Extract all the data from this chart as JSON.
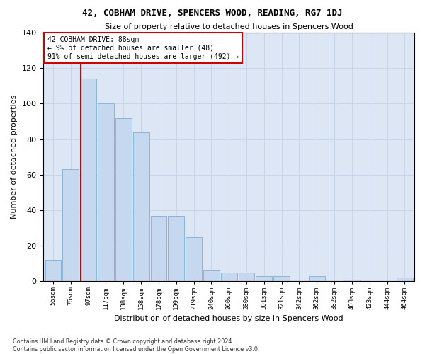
{
  "title": "42, COBHAM DRIVE, SPENCERS WOOD, READING, RG7 1DJ",
  "subtitle": "Size of property relative to detached houses in Spencers Wood",
  "xlabel": "Distribution of detached houses by size in Spencers Wood",
  "ylabel": "Number of detached properties",
  "bin_labels": [
    "56sqm",
    "76sqm",
    "97sqm",
    "117sqm",
    "138sqm",
    "158sqm",
    "178sqm",
    "199sqm",
    "219sqm",
    "240sqm",
    "260sqm",
    "280sqm",
    "301sqm",
    "321sqm",
    "342sqm",
    "362sqm",
    "382sqm",
    "403sqm",
    "423sqm",
    "444sqm",
    "464sqm"
  ],
  "bar_values": [
    12,
    63,
    114,
    100,
    92,
    84,
    37,
    37,
    25,
    6,
    5,
    5,
    3,
    3,
    0,
    3,
    0,
    1,
    0,
    0,
    2
  ],
  "bar_color": "#c5d8f0",
  "bar_edgecolor": "#8ab4d8",
  "grid_color": "#c8d4e8",
  "background_color": "#dde6f5",
  "vline_index": 1.6,
  "vline_color": "#cc0000",
  "annotation_box_facecolor": "#ffffff",
  "annotation_box_edgecolor": "#cc0000",
  "property_label": "42 COBHAM DRIVE: 88sqm",
  "annotation_line1": "← 9% of detached houses are smaller (48)",
  "annotation_line2": "91% of semi-detached houses are larger (492) →",
  "ylim": [
    0,
    140
  ],
  "yticks": [
    0,
    20,
    40,
    60,
    80,
    100,
    120,
    140
  ],
  "title_fontsize": 9,
  "subtitle_fontsize": 8,
  "ylabel_fontsize": 8,
  "xlabel_fontsize": 8,
  "footnote": "Contains HM Land Registry data © Crown copyright and database right 2024.\nContains public sector information licensed under the Open Government Licence v3.0."
}
